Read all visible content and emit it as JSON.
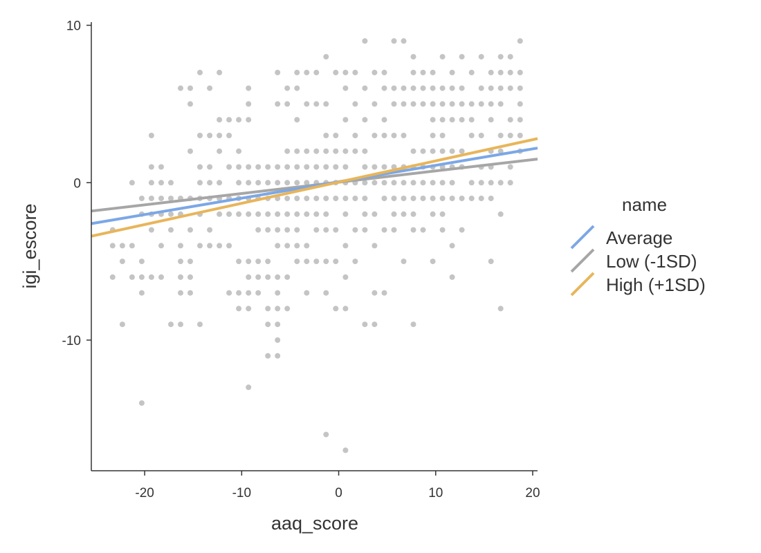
{
  "chart_data": {
    "type": "scatter",
    "xlabel": "aaq_score",
    "ylabel": "igi_escore",
    "xlim": [
      -25.5,
      20.5
    ],
    "ylim": [
      -18.3,
      10.2
    ],
    "xticks": [
      -20,
      -10,
      0,
      10,
      20
    ],
    "yticks": [
      -10,
      0,
      10
    ],
    "xtick_labels": [
      "-20",
      "-10",
      "0",
      "10",
      "20"
    ],
    "ytick_labels": [
      "-10",
      "0",
      "10"
    ],
    "grid": false,
    "legend": {
      "title": "name",
      "placement": "right",
      "entries": [
        {
          "label": "Average",
          "color": "#7BA7E6"
        },
        {
          "label": "Low (-1SD)",
          "color": "#A6A6A6"
        },
        {
          "label": "High (+1SD)",
          "color": "#E8B55A"
        }
      ]
    },
    "point_color": "#555555",
    "point_opacity": 0.35,
    "lines": [
      {
        "name": "Low (-1SD)",
        "color": "#A6A6A6",
        "x": [
          -25.5,
          20.5
        ],
        "y": [
          -1.8,
          1.5
        ]
      },
      {
        "name": "Average",
        "color": "#7BA7E6",
        "x": [
          -25.5,
          20.5
        ],
        "y": [
          -2.6,
          2.2
        ]
      },
      {
        "name": "High (+1SD)",
        "color": "#E8B55A",
        "x": [
          -25.5,
          20.5
        ],
        "y": [
          -3.4,
          2.8
        ]
      }
    ],
    "points": [
      [
        -23.3,
        -3
      ],
      [
        -22.3,
        -4
      ],
      [
        -23.3,
        -4
      ],
      [
        -22.3,
        -5
      ],
      [
        -23.3,
        -6
      ],
      [
        -22.3,
        -9
      ],
      [
        -21.3,
        0
      ],
      [
        -21.3,
        -4
      ],
      [
        -21.3,
        -6
      ],
      [
        -20.3,
        -1
      ],
      [
        -20.3,
        -2
      ],
      [
        -20.3,
        -5
      ],
      [
        -20.3,
        -6
      ],
      [
        -20.3,
        -7
      ],
      [
        -20.3,
        -14
      ],
      [
        -19.3,
        3
      ],
      [
        -19.3,
        1
      ],
      [
        -19.3,
        0
      ],
      [
        -19.3,
        -1
      ],
      [
        -19.3,
        -2
      ],
      [
        -19.3,
        -3
      ],
      [
        -19.3,
        -6
      ],
      [
        -18.3,
        1
      ],
      [
        -18.3,
        0
      ],
      [
        -18.3,
        -1
      ],
      [
        -18.3,
        -2
      ],
      [
        -18.3,
        -4
      ],
      [
        -18.3,
        -6
      ],
      [
        -17.3,
        0
      ],
      [
        -17.3,
        -1
      ],
      [
        -17.3,
        -2
      ],
      [
        -17.3,
        -3
      ],
      [
        -17.3,
        -9
      ],
      [
        -16.3,
        6
      ],
      [
        -16.3,
        -1
      ],
      [
        -16.3,
        -2
      ],
      [
        -16.3,
        -4
      ],
      [
        -16.3,
        -5
      ],
      [
        -16.3,
        -6
      ],
      [
        -16.3,
        -7
      ],
      [
        -16.3,
        -9
      ],
      [
        -15.3,
        6
      ],
      [
        -15.3,
        5
      ],
      [
        -15.3,
        2
      ],
      [
        -15.3,
        -1
      ],
      [
        -15.3,
        -3
      ],
      [
        -15.3,
        -5
      ],
      [
        -15.3,
        -6
      ],
      [
        -15.3,
        -7
      ],
      [
        -14.3,
        7
      ],
      [
        -14.3,
        3
      ],
      [
        -14.3,
        1
      ],
      [
        -14.3,
        0
      ],
      [
        -14.3,
        -1
      ],
      [
        -14.3,
        -2
      ],
      [
        -14.3,
        -4
      ],
      [
        -14.3,
        -9
      ],
      [
        -13.3,
        6
      ],
      [
        -13.3,
        3
      ],
      [
        -13.3,
        1
      ],
      [
        -13.3,
        0
      ],
      [
        -13.3,
        -1
      ],
      [
        -13.3,
        -3
      ],
      [
        -13.3,
        -4
      ],
      [
        -12.3,
        7
      ],
      [
        -12.3,
        4
      ],
      [
        -12.3,
        3
      ],
      [
        -12.3,
        2
      ],
      [
        -12.3,
        0
      ],
      [
        -12.3,
        -1
      ],
      [
        -12.3,
        -2
      ],
      [
        -12.3,
        -4
      ],
      [
        -11.3,
        4
      ],
      [
        -11.3,
        3
      ],
      [
        -11.3,
        1
      ],
      [
        -11.3,
        -1
      ],
      [
        -11.3,
        -2
      ],
      [
        -11.3,
        -4
      ],
      [
        -11.3,
        -7
      ],
      [
        -10.3,
        4
      ],
      [
        -10.3,
        2
      ],
      [
        -10.3,
        1
      ],
      [
        -10.3,
        0
      ],
      [
        -10.3,
        -1
      ],
      [
        -10.3,
        -2
      ],
      [
        -10.3,
        -5
      ],
      [
        -10.3,
        -7
      ],
      [
        -10.3,
        -8
      ],
      [
        -9.3,
        6
      ],
      [
        -9.3,
        5
      ],
      [
        -9.3,
        4
      ],
      [
        -9.3,
        1
      ],
      [
        -9.3,
        0
      ],
      [
        -9.3,
        -1
      ],
      [
        -9.3,
        -2
      ],
      [
        -9.3,
        -5
      ],
      [
        -9.3,
        -6
      ],
      [
        -9.3,
        -7
      ],
      [
        -9.3,
        -8
      ],
      [
        -9.3,
        -13
      ],
      [
        -8.3,
        1
      ],
      [
        -8.3,
        0
      ],
      [
        -8.3,
        -1
      ],
      [
        -8.3,
        -2
      ],
      [
        -8.3,
        -3
      ],
      [
        -8.3,
        -5
      ],
      [
        -8.3,
        -6
      ],
      [
        -8.3,
        -7
      ],
      [
        -7.3,
        1
      ],
      [
        -7.3,
        0
      ],
      [
        -7.3,
        -1
      ],
      [
        -7.3,
        -2
      ],
      [
        -7.3,
        -3
      ],
      [
        -7.3,
        -5
      ],
      [
        -7.3,
        -6
      ],
      [
        -7.3,
        -8
      ],
      [
        -7.3,
        -9
      ],
      [
        -7.3,
        -11
      ],
      [
        -6.3,
        7
      ],
      [
        -6.3,
        5
      ],
      [
        -6.3,
        1
      ],
      [
        -6.3,
        0
      ],
      [
        -6.3,
        -1
      ],
      [
        -6.3,
        -2
      ],
      [
        -6.3,
        -3
      ],
      [
        -6.3,
        -4
      ],
      [
        -6.3,
        -6
      ],
      [
        -6.3,
        -7
      ],
      [
        -6.3,
        -8
      ],
      [
        -6.3,
        -9
      ],
      [
        -6.3,
        -10
      ],
      [
        -6.3,
        -11
      ],
      [
        -5.3,
        6
      ],
      [
        -5.3,
        5
      ],
      [
        -5.3,
        2
      ],
      [
        -5.3,
        1
      ],
      [
        -5.3,
        0
      ],
      [
        -5.3,
        -1
      ],
      [
        -5.3,
        -2
      ],
      [
        -5.3,
        -3
      ],
      [
        -5.3,
        -4
      ],
      [
        -5.3,
        -6
      ],
      [
        -5.3,
        -8
      ],
      [
        -4.3,
        7
      ],
      [
        -4.3,
        6
      ],
      [
        -4.3,
        4
      ],
      [
        -4.3,
        2
      ],
      [
        -4.3,
        1
      ],
      [
        -4.3,
        0
      ],
      [
        -4.3,
        -1
      ],
      [
        -4.3,
        -2
      ],
      [
        -4.3,
        -3
      ],
      [
        -4.3,
        -4
      ],
      [
        -4.3,
        -5
      ],
      [
        -3.3,
        7
      ],
      [
        -3.3,
        5
      ],
      [
        -3.3,
        2
      ],
      [
        -3.3,
        1
      ],
      [
        -3.3,
        0
      ],
      [
        -3.3,
        -1
      ],
      [
        -3.3,
        -2
      ],
      [
        -3.3,
        -4
      ],
      [
        -3.3,
        -5
      ],
      [
        -3.3,
        -7
      ],
      [
        -2.3,
        7
      ],
      [
        -2.3,
        5
      ],
      [
        -2.3,
        2
      ],
      [
        -2.3,
        1
      ],
      [
        -2.3,
        0
      ],
      [
        -2.3,
        -1
      ],
      [
        -2.3,
        -2
      ],
      [
        -2.3,
        -3
      ],
      [
        -2.3,
        -5
      ],
      [
        -1.3,
        8
      ],
      [
        -1.3,
        5
      ],
      [
        -1.3,
        3
      ],
      [
        -1.3,
        2
      ],
      [
        -1.3,
        1
      ],
      [
        -1.3,
        0
      ],
      [
        -1.3,
        -1
      ],
      [
        -1.3,
        -2
      ],
      [
        -1.3,
        -3
      ],
      [
        -1.3,
        -5
      ],
      [
        -1.3,
        -7
      ],
      [
        -1.3,
        -16
      ],
      [
        -0.3,
        7
      ],
      [
        -0.3,
        3
      ],
      [
        -0.3,
        2
      ],
      [
        -0.3,
        1
      ],
      [
        -0.3,
        0
      ],
      [
        -0.3,
        -1
      ],
      [
        -0.3,
        -3
      ],
      [
        -0.3,
        -5
      ],
      [
        -0.3,
        -8
      ],
      [
        0.7,
        7
      ],
      [
        0.7,
        6
      ],
      [
        0.7,
        4
      ],
      [
        0.7,
        2
      ],
      [
        0.7,
        1
      ],
      [
        0.7,
        0
      ],
      [
        0.7,
        -1
      ],
      [
        0.7,
        -2
      ],
      [
        0.7,
        -4
      ],
      [
        0.7,
        -6
      ],
      [
        0.7,
        -8
      ],
      [
        0.7,
        -17
      ],
      [
        1.7,
        7
      ],
      [
        1.7,
        5
      ],
      [
        1.7,
        3
      ],
      [
        1.7,
        2
      ],
      [
        1.7,
        0
      ],
      [
        1.7,
        -1
      ],
      [
        1.7,
        -3
      ],
      [
        1.7,
        -5
      ],
      [
        2.7,
        9
      ],
      [
        2.7,
        6
      ],
      [
        2.7,
        4
      ],
      [
        2.7,
        2
      ],
      [
        2.7,
        1
      ],
      [
        2.7,
        0
      ],
      [
        2.7,
        -1
      ],
      [
        2.7,
        -2
      ],
      [
        2.7,
        -3
      ],
      [
        2.7,
        -9
      ],
      [
        3.7,
        7
      ],
      [
        3.7,
        5
      ],
      [
        3.7,
        3
      ],
      [
        3.7,
        1
      ],
      [
        3.7,
        0
      ],
      [
        3.7,
        -2
      ],
      [
        3.7,
        -4
      ],
      [
        3.7,
        -7
      ],
      [
        3.7,
        -9
      ],
      [
        4.7,
        7
      ],
      [
        4.7,
        6
      ],
      [
        4.7,
        4
      ],
      [
        4.7,
        3
      ],
      [
        4.7,
        1
      ],
      [
        4.7,
        0
      ],
      [
        4.7,
        -1
      ],
      [
        4.7,
        -3
      ],
      [
        4.7,
        -7
      ],
      [
        5.7,
        9
      ],
      [
        5.7,
        6
      ],
      [
        5.7,
        5
      ],
      [
        5.7,
        3
      ],
      [
        5.7,
        1
      ],
      [
        5.7,
        0
      ],
      [
        5.7,
        -1
      ],
      [
        5.7,
        -2
      ],
      [
        5.7,
        -3
      ],
      [
        6.7,
        9
      ],
      [
        6.7,
        6
      ],
      [
        6.7,
        5
      ],
      [
        6.7,
        3
      ],
      [
        6.7,
        1
      ],
      [
        6.7,
        0
      ],
      [
        6.7,
        -1
      ],
      [
        6.7,
        -2
      ],
      [
        6.7,
        -5
      ],
      [
        7.7,
        8
      ],
      [
        7.7,
        7
      ],
      [
        7.7,
        6
      ],
      [
        7.7,
        5
      ],
      [
        7.7,
        2
      ],
      [
        7.7,
        1
      ],
      [
        7.7,
        0
      ],
      [
        7.7,
        -1
      ],
      [
        7.7,
        -2
      ],
      [
        7.7,
        -3
      ],
      [
        7.7,
        -9
      ],
      [
        8.7,
        7
      ],
      [
        8.7,
        6
      ],
      [
        8.7,
        5
      ],
      [
        8.7,
        2
      ],
      [
        8.7,
        1
      ],
      [
        8.7,
        0
      ],
      [
        8.7,
        -1
      ],
      [
        8.7,
        -3
      ],
      [
        9.7,
        7
      ],
      [
        9.7,
        6
      ],
      [
        9.7,
        5
      ],
      [
        9.7,
        4
      ],
      [
        9.7,
        3
      ],
      [
        9.7,
        2
      ],
      [
        9.7,
        1
      ],
      [
        9.7,
        0
      ],
      [
        9.7,
        -1
      ],
      [
        9.7,
        -2
      ],
      [
        9.7,
        -5
      ],
      [
        10.7,
        8
      ],
      [
        10.7,
        6
      ],
      [
        10.7,
        5
      ],
      [
        10.7,
        4
      ],
      [
        10.7,
        3
      ],
      [
        10.7,
        2
      ],
      [
        10.7,
        1
      ],
      [
        10.7,
        0
      ],
      [
        10.7,
        -1
      ],
      [
        10.7,
        -2
      ],
      [
        10.7,
        -3
      ],
      [
        11.7,
        7
      ],
      [
        11.7,
        6
      ],
      [
        11.7,
        5
      ],
      [
        11.7,
        4
      ],
      [
        11.7,
        2
      ],
      [
        11.7,
        1
      ],
      [
        11.7,
        0
      ],
      [
        11.7,
        -1
      ],
      [
        11.7,
        -4
      ],
      [
        11.7,
        -6
      ],
      [
        12.7,
        8
      ],
      [
        12.7,
        6
      ],
      [
        12.7,
        5
      ],
      [
        12.7,
        4
      ],
      [
        12.7,
        2
      ],
      [
        12.7,
        1
      ],
      [
        12.7,
        -1
      ],
      [
        12.7,
        -3
      ],
      [
        13.7,
        7
      ],
      [
        13.7,
        5
      ],
      [
        13.7,
        4
      ],
      [
        13.7,
        3
      ],
      [
        13.7,
        0
      ],
      [
        13.7,
        -1
      ],
      [
        14.7,
        8
      ],
      [
        14.7,
        6
      ],
      [
        14.7,
        5
      ],
      [
        14.7,
        3
      ],
      [
        14.7,
        1
      ],
      [
        14.7,
        0
      ],
      [
        14.7,
        -1
      ],
      [
        15.7,
        7
      ],
      [
        15.7,
        6
      ],
      [
        15.7,
        5
      ],
      [
        15.7,
        4
      ],
      [
        15.7,
        2
      ],
      [
        15.7,
        1
      ],
      [
        15.7,
        0
      ],
      [
        15.7,
        -1
      ],
      [
        15.7,
        -5
      ],
      [
        16.7,
        8
      ],
      [
        16.7,
        7
      ],
      [
        16.7,
        6
      ],
      [
        16.7,
        5
      ],
      [
        16.7,
        3
      ],
      [
        16.7,
        2
      ],
      [
        16.7,
        0
      ],
      [
        16.7,
        -2
      ],
      [
        16.7,
        -8
      ],
      [
        17.7,
        8
      ],
      [
        17.7,
        7
      ],
      [
        17.7,
        6
      ],
      [
        17.7,
        4
      ],
      [
        17.7,
        3
      ],
      [
        17.7,
        1
      ],
      [
        17.7,
        0
      ],
      [
        18.7,
        9
      ],
      [
        18.7,
        7
      ],
      [
        18.7,
        6
      ],
      [
        18.7,
        5
      ],
      [
        18.7,
        4
      ],
      [
        18.7,
        3
      ],
      [
        18.7,
        2
      ]
    ]
  }
}
